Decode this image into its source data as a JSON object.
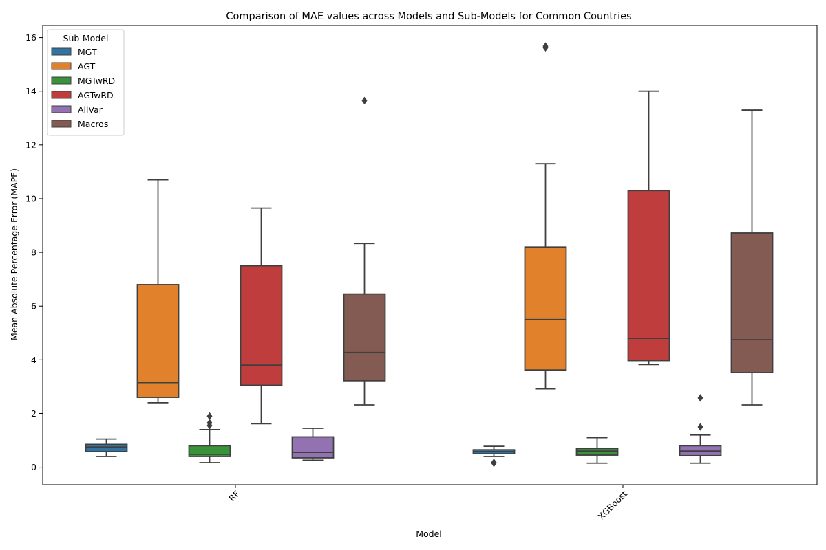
{
  "chart_data": {
    "type": "box",
    "title": "Comparison of MAE values across Models and Sub-Models for Common Countries",
    "xlabel": "Model",
    "ylabel": "Mean Absolute Percentage Error (MAPE)",
    "ylim": [
      -0.65,
      16.45
    ],
    "yticks": [
      0,
      2,
      4,
      6,
      8,
      10,
      12,
      14,
      16
    ],
    "categories": [
      "RF",
      "XGBoost"
    ],
    "legend": {
      "title": "Sub-Model",
      "position": "upper-left"
    },
    "series": [
      {
        "name": "MGT",
        "color": "#3274a1",
        "boxes": [
          {
            "category": "RF",
            "whisker_low": 0.4,
            "q1": 0.58,
            "median": 0.75,
            "q3": 0.85,
            "whisker_high": 1.05,
            "outliers": []
          },
          {
            "category": "XGBoost",
            "whisker_low": 0.4,
            "q1": 0.5,
            "median": 0.58,
            "q3": 0.65,
            "whisker_high": 0.78,
            "outliers": [
              0.15,
              0.18
            ]
          }
        ]
      },
      {
        "name": "AGT",
        "color": "#e1812c",
        "boxes": [
          {
            "category": "RF",
            "whisker_low": 2.4,
            "q1": 2.6,
            "median": 3.15,
            "q3": 6.8,
            "whisker_high": 10.7,
            "outliers": []
          },
          {
            "category": "XGBoost",
            "whisker_low": 2.92,
            "q1": 3.62,
            "median": 5.5,
            "q3": 8.2,
            "whisker_high": 11.3,
            "outliers": [
              15.62,
              15.68
            ]
          }
        ]
      },
      {
        "name": "MGTwRD",
        "color": "#3a923a",
        "boxes": [
          {
            "category": "RF",
            "whisker_low": 0.17,
            "q1": 0.4,
            "median": 0.48,
            "q3": 0.8,
            "whisker_high": 1.4,
            "outliers": [
              1.55,
              1.65,
              1.9
            ]
          },
          {
            "category": "XGBoost",
            "whisker_low": 0.15,
            "q1": 0.45,
            "median": 0.6,
            "q3": 0.7,
            "whisker_high": 1.1,
            "outliers": []
          }
        ]
      },
      {
        "name": "AGTwRD",
        "color": "#c03d3e",
        "boxes": [
          {
            "category": "RF",
            "whisker_low": 1.62,
            "q1": 3.05,
            "median": 3.8,
            "q3": 7.5,
            "whisker_high": 9.65,
            "outliers": []
          },
          {
            "category": "XGBoost",
            "whisker_low": 3.82,
            "q1": 3.97,
            "median": 4.8,
            "q3": 10.3,
            "whisker_high": 14.0,
            "outliers": []
          }
        ]
      },
      {
        "name": "AllVar",
        "color": "#9372b2",
        "boxes": [
          {
            "category": "RF",
            "whisker_low": 0.26,
            "q1": 0.35,
            "median": 0.55,
            "q3": 1.13,
            "whisker_high": 1.45,
            "outliers": []
          },
          {
            "category": "XGBoost",
            "whisker_low": 0.15,
            "q1": 0.43,
            "median": 0.6,
            "q3": 0.8,
            "whisker_high": 1.2,
            "outliers": [
              1.5,
              2.58
            ]
          }
        ]
      },
      {
        "name": "Macros",
        "color": "#845b53",
        "boxes": [
          {
            "category": "RF",
            "whisker_low": 2.32,
            "q1": 3.22,
            "median": 4.27,
            "q3": 6.45,
            "whisker_high": 8.33,
            "outliers": [
              13.65
            ]
          },
          {
            "category": "XGBoost",
            "whisker_low": 2.32,
            "q1": 3.52,
            "median": 4.75,
            "q3": 8.72,
            "whisker_high": 13.3,
            "outliers": []
          }
        ]
      }
    ]
  }
}
